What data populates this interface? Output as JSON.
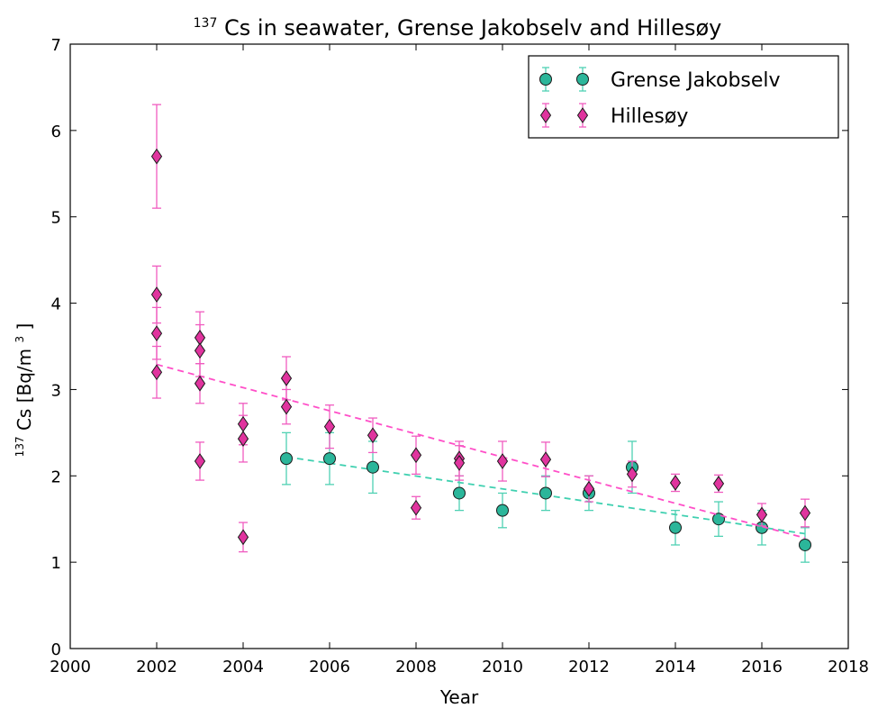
{
  "chart_data": {
    "type": "scatter",
    "title_sup": "137",
    "title_main": "Cs in seawater, Grense Jakobselv and Hillesøy",
    "xlabel": "Year",
    "ylabel_sup": "137",
    "ylabel_main": "Cs [Bq/m",
    "ylabel_unit_sup": "3",
    "ylabel_end": "]",
    "xlim": [
      2000,
      2018
    ],
    "ylim": [
      0,
      7
    ],
    "xticks": [
      "2000",
      "2002",
      "2004",
      "2006",
      "2008",
      "2010",
      "2012",
      "2014",
      "2016",
      "2018"
    ],
    "yticks": [
      "0",
      "1",
      "2",
      "3",
      "4",
      "5",
      "6",
      "7"
    ],
    "grid": false,
    "legend_position": "top-right",
    "series": [
      {
        "name": "Grense Jakobselv",
        "marker": "circle",
        "color": "#2bb69a",
        "errcolor": "#4fd1b3",
        "trendcolor": "#3fd0b0",
        "trend": [
          [
            2005,
            2.22
          ],
          [
            2017,
            1.33
          ]
        ],
        "points": [
          {
            "x": 2005,
            "y": 2.2,
            "err": 0.3
          },
          {
            "x": 2006,
            "y": 2.2,
            "err": 0.3
          },
          {
            "x": 2007,
            "y": 2.1,
            "err": 0.3
          },
          {
            "x": 2009,
            "y": 1.8,
            "err": 0.2
          },
          {
            "x": 2010,
            "y": 1.6,
            "err": 0.2
          },
          {
            "x": 2011,
            "y": 1.8,
            "err": 0.2
          },
          {
            "x": 2012,
            "y": 1.8,
            "err": 0.2
          },
          {
            "x": 2013,
            "y": 2.1,
            "err": 0.3
          },
          {
            "x": 2014,
            "y": 1.4,
            "err": 0.2
          },
          {
            "x": 2015,
            "y": 1.5,
            "err": 0.2
          },
          {
            "x": 2016,
            "y": 1.4,
            "err": 0.2
          },
          {
            "x": 2017,
            "y": 1.2,
            "err": 0.2
          }
        ]
      },
      {
        "name": "Hillesøy",
        "marker": "diamond",
        "color": "#e0349e",
        "errcolor": "#f05cc0",
        "trendcolor": "#ff4fc8",
        "trend": [
          [
            2002,
            3.29
          ],
          [
            2017,
            1.28
          ]
        ],
        "points": [
          {
            "x": 2002,
            "y": 5.7,
            "err": 0.6
          },
          {
            "x": 2002,
            "y": 4.1,
            "err": 0.33
          },
          {
            "x": 2002,
            "y": 3.65,
            "err": 0.3
          },
          {
            "x": 2002,
            "y": 3.2,
            "err": 0.3
          },
          {
            "x": 2003,
            "y": 3.6,
            "err": 0.3
          },
          {
            "x": 2003,
            "y": 3.45,
            "err": 0.3
          },
          {
            "x": 2003,
            "y": 3.07,
            "err": 0.23
          },
          {
            "x": 2003,
            "y": 2.17,
            "err": 0.22
          },
          {
            "x": 2004,
            "y": 2.6,
            "err": 0.24
          },
          {
            "x": 2004,
            "y": 2.43,
            "err": 0.27
          },
          {
            "x": 2004,
            "y": 1.29,
            "err": 0.17
          },
          {
            "x": 2005,
            "y": 3.13,
            "err": 0.25
          },
          {
            "x": 2005,
            "y": 2.8,
            "err": 0.2
          },
          {
            "x": 2006,
            "y": 2.57,
            "err": 0.25
          },
          {
            "x": 2007,
            "y": 2.47,
            "err": 0.2
          },
          {
            "x": 2008,
            "y": 2.24,
            "err": 0.22
          },
          {
            "x": 2008,
            "y": 1.63,
            "err": 0.13
          },
          {
            "x": 2009,
            "y": 2.2,
            "err": 0.2
          },
          {
            "x": 2009,
            "y": 2.15,
            "err": 0.2
          },
          {
            "x": 2010,
            "y": 2.17,
            "err": 0.23
          },
          {
            "x": 2011,
            "y": 2.19,
            "err": 0.2
          },
          {
            "x": 2012,
            "y": 1.85,
            "err": 0.15
          },
          {
            "x": 2013,
            "y": 2.02,
            "err": 0.15
          },
          {
            "x": 2014,
            "y": 1.92,
            "err": 0.1
          },
          {
            "x": 2015,
            "y": 1.91,
            "err": 0.1
          },
          {
            "x": 2016,
            "y": 1.55,
            "err": 0.13
          },
          {
            "x": 2017,
            "y": 1.57,
            "err": 0.16
          }
        ]
      }
    ]
  }
}
